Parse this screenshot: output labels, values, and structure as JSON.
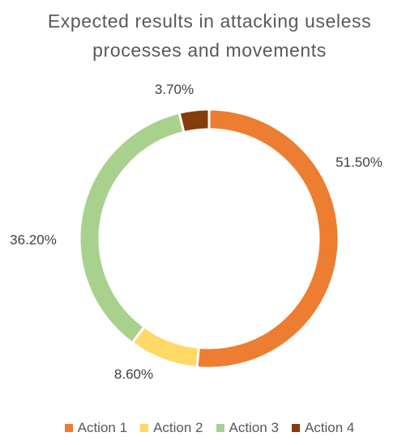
{
  "chart_data": {
    "type": "pie",
    "title_lines": [
      "Expected results in attacking useless",
      "processes and movements"
    ],
    "categories": [
      "Action 1",
      "Action 2",
      "Action 3",
      "Action 4"
    ],
    "values": [
      51.5,
      8.6,
      36.2,
      3.7
    ],
    "value_labels": [
      "51.50%",
      "8.60%",
      "36.20%",
      "3.70%"
    ],
    "colors": [
      "#ED7D31",
      "#FFD966",
      "#A9D18E",
      "#843C0C"
    ],
    "donut": true,
    "legend_position": "bottom"
  }
}
